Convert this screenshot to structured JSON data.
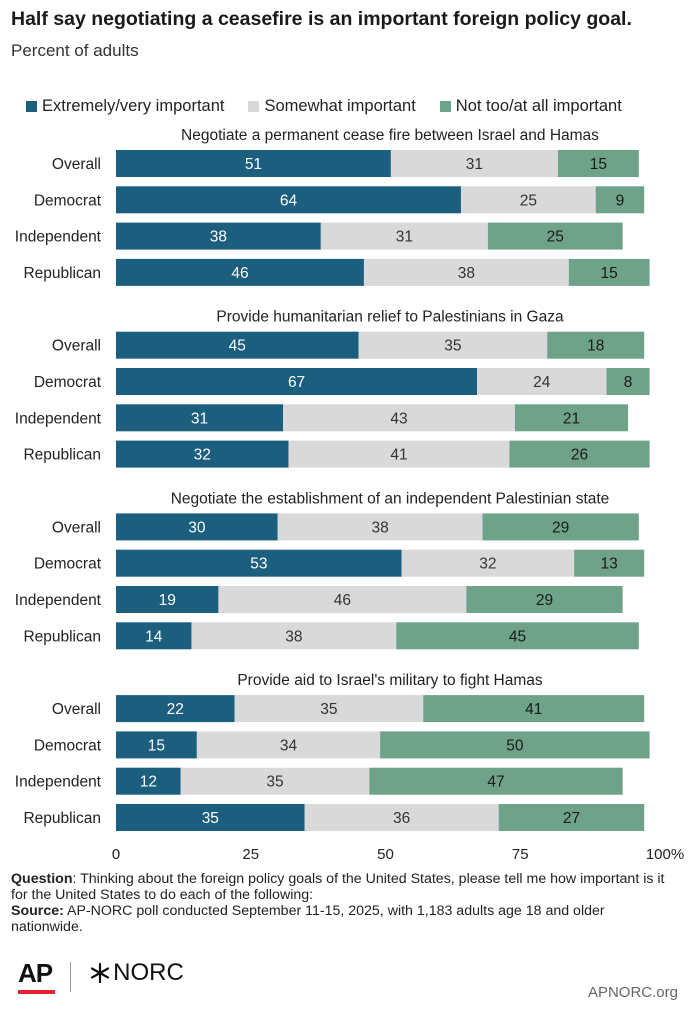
{
  "title": "Half say negotiating a ceasefire is an important foreign policy goal.",
  "subtitle": "Percent of adults",
  "legend": [
    {
      "label": "Extremely/very important",
      "color": "#1b5e7e"
    },
    {
      "label": "Somewhat important",
      "color": "#d9d9d9"
    },
    {
      "label": "Not too/at all important",
      "color": "#6fa389"
    }
  ],
  "chart_data": {
    "type": "bar",
    "orientation": "horizontal",
    "stacked": true,
    "xlim": [
      0,
      100
    ],
    "x_ticks": [
      "0",
      "25",
      "50",
      "75",
      "100%"
    ],
    "categories": [
      "Overall",
      "Democrat",
      "Independent",
      "Republican"
    ],
    "series_names": [
      "Extremely/very important",
      "Somewhat important",
      "Not too/at all important"
    ],
    "colors": [
      "#1b5e7e",
      "#d9d9d9",
      "#6fa389"
    ],
    "panels": [
      {
        "title": "Negotiate a permanent cease fire between Israel and Hamas",
        "rows": [
          {
            "label": "Overall",
            "values": [
              51,
              31,
              15
            ]
          },
          {
            "label": "Democrat",
            "values": [
              64,
              25,
              9
            ]
          },
          {
            "label": "Independent",
            "values": [
              38,
              31,
              25
            ]
          },
          {
            "label": "Republican",
            "values": [
              46,
              38,
              15
            ]
          }
        ]
      },
      {
        "title": "Provide humanitarian relief to Palestinians in Gaza",
        "rows": [
          {
            "label": "Overall",
            "values": [
              45,
              35,
              18
            ]
          },
          {
            "label": "Democrat",
            "values": [
              67,
              24,
              8
            ]
          },
          {
            "label": "Independent",
            "values": [
              31,
              43,
              21
            ]
          },
          {
            "label": "Republican",
            "values": [
              32,
              41,
              26
            ]
          }
        ]
      },
      {
        "title": "Negotiate the establishment of an independent Palestinian state",
        "rows": [
          {
            "label": "Overall",
            "values": [
              30,
              38,
              29
            ]
          },
          {
            "label": "Democrat",
            "values": [
              53,
              32,
              13
            ]
          },
          {
            "label": "Independent",
            "values": [
              19,
              46,
              29
            ]
          },
          {
            "label": "Republican",
            "values": [
              14,
              38,
              45
            ]
          }
        ]
      },
      {
        "title": "Provide aid to Israel's military to fight Hamas",
        "rows": [
          {
            "label": "Overall",
            "values": [
              22,
              35,
              41
            ]
          },
          {
            "label": "Democrat",
            "values": [
              15,
              34,
              50
            ]
          },
          {
            "label": "Independent",
            "values": [
              12,
              35,
              47
            ]
          },
          {
            "label": "Republican",
            "values": [
              35,
              36,
              27
            ]
          }
        ]
      }
    ]
  },
  "notes": {
    "question_label": "Question",
    "question_text": ": Thinking about the foreign policy goals of the United States, please tell me how important is it for the United States to do each of the following:",
    "source_label": "Source:",
    "source_text": " AP-NORC poll conducted September 11-15, 2025, with 1,183 adults age 18 and older nationwide."
  },
  "logos": {
    "ap": "AP",
    "norc": "NORC"
  },
  "site": "APNORC.org"
}
